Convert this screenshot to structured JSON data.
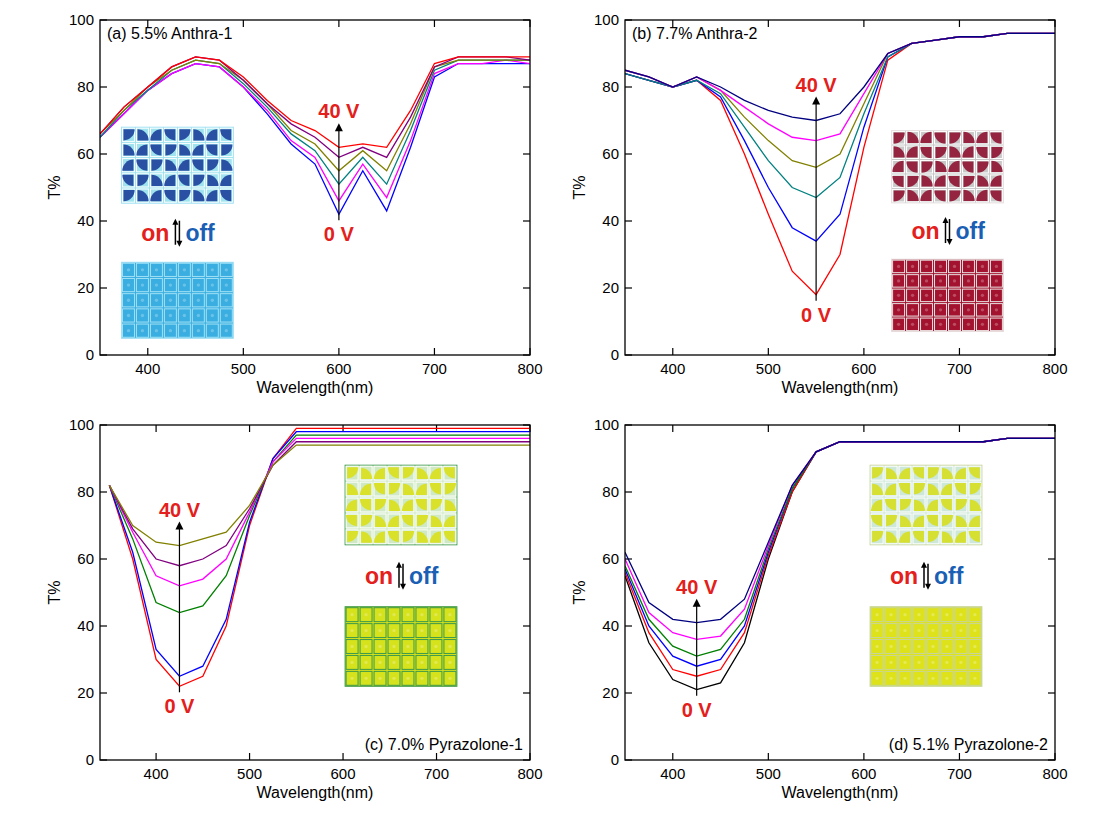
{
  "chart_data": [
    {
      "type": "line",
      "title": "(a) 5.5% Anthra-1",
      "x_label": "Wavelength(nm)",
      "y_label": "T%",
      "x": [
        350,
        375,
        400,
        425,
        450,
        475,
        500,
        525,
        550,
        575,
        600,
        625,
        650,
        675,
        700,
        725,
        750,
        775,
        800
      ],
      "xlim": [
        350,
        800
      ],
      "ylim": [
        0,
        100
      ],
      "xticks": [
        400,
        500,
        600,
        700,
        800
      ],
      "yticks": [
        0,
        20,
        40,
        60,
        80,
        100
      ],
      "series": [
        {
          "color": "#0000ff",
          "values": [
            65,
            72,
            79,
            84,
            87,
            86,
            80,
            72,
            63,
            57,
            42,
            55,
            43,
            62,
            83,
            87,
            87,
            87,
            87
          ]
        },
        {
          "color": "#ff00ff",
          "values": [
            65,
            72,
            79,
            84,
            87,
            86,
            80,
            73,
            64,
            59,
            46,
            57,
            47,
            64,
            84,
            87,
            87,
            88,
            87
          ]
        },
        {
          "color": "#008080",
          "values": [
            65,
            73,
            79,
            85,
            88,
            87,
            81,
            74,
            66,
            61,
            51,
            59,
            51,
            67,
            85,
            88,
            88,
            88,
            88
          ]
        },
        {
          "color": "#808000",
          "values": [
            66,
            73,
            80,
            85,
            88,
            87,
            82,
            75,
            67,
            63,
            55,
            61,
            55,
            69,
            86,
            88,
            88,
            88,
            88
          ]
        },
        {
          "color": "#800080",
          "values": [
            66,
            74,
            80,
            86,
            89,
            88,
            82,
            75,
            69,
            65,
            59,
            62,
            59,
            71,
            86,
            89,
            89,
            89,
            88
          ]
        },
        {
          "color": "#ff0000",
          "values": [
            66,
            74,
            80,
            86,
            89,
            88,
            83,
            76,
            70,
            67,
            62,
            63,
            62,
            73,
            87,
            89,
            89,
            89,
            89
          ]
        }
      ],
      "annotations": [
        "40 V",
        "0 V",
        "on",
        "off"
      ]
    },
    {
      "type": "line",
      "title": "(b) 7.7% Anthra-2",
      "x_label": "Wavelength(nm)",
      "y_label": "T%",
      "x": [
        350,
        375,
        400,
        425,
        450,
        475,
        500,
        525,
        550,
        575,
        600,
        625,
        650,
        675,
        700,
        725,
        750,
        775,
        800
      ],
      "xlim": [
        350,
        800
      ],
      "ylim": [
        0,
        100
      ],
      "xticks": [
        400,
        500,
        600,
        700,
        800
      ],
      "yticks": [
        0,
        20,
        40,
        60,
        80,
        100
      ],
      "series": [
        {
          "color": "#ff0000",
          "values": [
            84,
            82,
            80,
            82,
            76,
            60,
            42,
            25,
            18,
            30,
            62,
            88,
            93,
            94,
            95,
            95,
            96,
            96,
            96
          ]
        },
        {
          "color": "#0000ff",
          "values": [
            84,
            82,
            80,
            82,
            77,
            64,
            50,
            38,
            34,
            42,
            68,
            89,
            93,
            94,
            95,
            95,
            96,
            96,
            96
          ]
        },
        {
          "color": "#008080",
          "values": [
            84,
            82,
            80,
            82,
            78,
            68,
            58,
            50,
            47,
            53,
            72,
            89,
            93,
            94,
            95,
            95,
            96,
            96,
            96
          ]
        },
        {
          "color": "#808000",
          "values": [
            85,
            83,
            80,
            83,
            79,
            71,
            64,
            58,
            56,
            60,
            75,
            90,
            93,
            94,
            95,
            95,
            96,
            96,
            96
          ]
        },
        {
          "color": "#ff00ff",
          "values": [
            85,
            83,
            80,
            83,
            79,
            74,
            69,
            65,
            64,
            66,
            78,
            90,
            93,
            94,
            95,
            95,
            96,
            96,
            96
          ]
        },
        {
          "color": "#000080",
          "values": [
            85,
            83,
            80,
            83,
            80,
            76,
            73,
            71,
            70,
            72,
            80,
            90,
            93,
            94,
            95,
            95,
            96,
            96,
            96
          ]
        }
      ],
      "annotations": [
        "40 V",
        "0 V",
        "on",
        "off"
      ]
    },
    {
      "type": "line",
      "title": "(c) 7.0% Pyrazolone-1",
      "x_label": "Wavelength(nm)",
      "y_label": "T%",
      "x": [
        350,
        375,
        400,
        425,
        450,
        475,
        500,
        525,
        550,
        575,
        600,
        625,
        650,
        675,
        700,
        725,
        750,
        775,
        800
      ],
      "xlim": [
        340,
        800
      ],
      "ylim": [
        0,
        100
      ],
      "xticks": [
        400,
        500,
        600,
        700,
        800
      ],
      "yticks": [
        0,
        20,
        40,
        60,
        80,
        100
      ],
      "series": [
        {
          "color": "#ff0000",
          "values": [
            82,
            60,
            30,
            22,
            25,
            40,
            70,
            90,
            99,
            99,
            99,
            99,
            99,
            99,
            99,
            99,
            99,
            99,
            99
          ]
        },
        {
          "color": "#0000ff",
          "values": [
            82,
            62,
            33,
            25,
            28,
            42,
            71,
            90,
            98,
            98,
            98,
            98,
            98,
            98,
            98,
            98,
            98,
            98,
            98
          ]
        },
        {
          "color": "#008000",
          "values": [
            82,
            66,
            47,
            44,
            46,
            55,
            73,
            89,
            97,
            97,
            97,
            97,
            97,
            97,
            97,
            97,
            97,
            97,
            97
          ]
        },
        {
          "color": "#ff00ff",
          "values": [
            82,
            68,
            55,
            52,
            54,
            60,
            74,
            89,
            96,
            96,
            96,
            96,
            96,
            96,
            96,
            96,
            96,
            96,
            96
          ]
        },
        {
          "color": "#800080",
          "values": [
            82,
            69,
            60,
            58,
            60,
            64,
            75,
            88,
            95,
            95,
            95,
            95,
            95,
            95,
            95,
            95,
            95,
            95,
            95
          ]
        },
        {
          "color": "#808000",
          "values": [
            82,
            70,
            65,
            64,
            66,
            68,
            76,
            88,
            94,
            94,
            94,
            94,
            94,
            94,
            94,
            94,
            94,
            94,
            94
          ]
        }
      ],
      "annotations": [
        "40 V",
        "0 V",
        "on",
        "off"
      ]
    },
    {
      "type": "line",
      "title": "(d) 5.1% Pyrazolone-2",
      "x_label": "Wavelength(nm)",
      "y_label": "T%",
      "x": [
        350,
        375,
        400,
        425,
        450,
        475,
        500,
        525,
        550,
        575,
        600,
        625,
        650,
        675,
        700,
        725,
        750,
        775,
        800
      ],
      "xlim": [
        350,
        800
      ],
      "ylim": [
        0,
        100
      ],
      "xticks": [
        400,
        500,
        600,
        700,
        800
      ],
      "yticks": [
        0,
        20,
        40,
        60,
        80,
        100
      ],
      "series": [
        {
          "color": "#000000",
          "values": [
            55,
            35,
            24,
            21,
            23,
            35,
            60,
            80,
            92,
            95,
            95,
            95,
            95,
            95,
            95,
            95,
            96,
            96,
            96
          ]
        },
        {
          "color": "#ff0000",
          "values": [
            56,
            38,
            27,
            25,
            27,
            38,
            61,
            80,
            92,
            95,
            95,
            95,
            95,
            95,
            95,
            95,
            96,
            96,
            96
          ]
        },
        {
          "color": "#0000ff",
          "values": [
            57,
            40,
            31,
            28,
            30,
            40,
            62,
            81,
            92,
            95,
            95,
            95,
            95,
            95,
            95,
            95,
            96,
            96,
            96
          ]
        },
        {
          "color": "#008000",
          "values": [
            58,
            42,
            34,
            31,
            33,
            42,
            63,
            81,
            92,
            95,
            95,
            95,
            95,
            95,
            95,
            95,
            96,
            96,
            96
          ]
        },
        {
          "color": "#ff00ff",
          "values": [
            60,
            44,
            38,
            36,
            37,
            45,
            64,
            82,
            92,
            95,
            95,
            95,
            95,
            95,
            95,
            95,
            96,
            96,
            96
          ]
        },
        {
          "color": "#000080",
          "values": [
            62,
            47,
            42,
            41,
            42,
            48,
            65,
            82,
            92,
            95,
            95,
            95,
            95,
            95,
            95,
            95,
            96,
            96,
            96
          ]
        }
      ],
      "annotations": [
        "40 V",
        "0 V",
        "on",
        "off"
      ]
    }
  ]
}
